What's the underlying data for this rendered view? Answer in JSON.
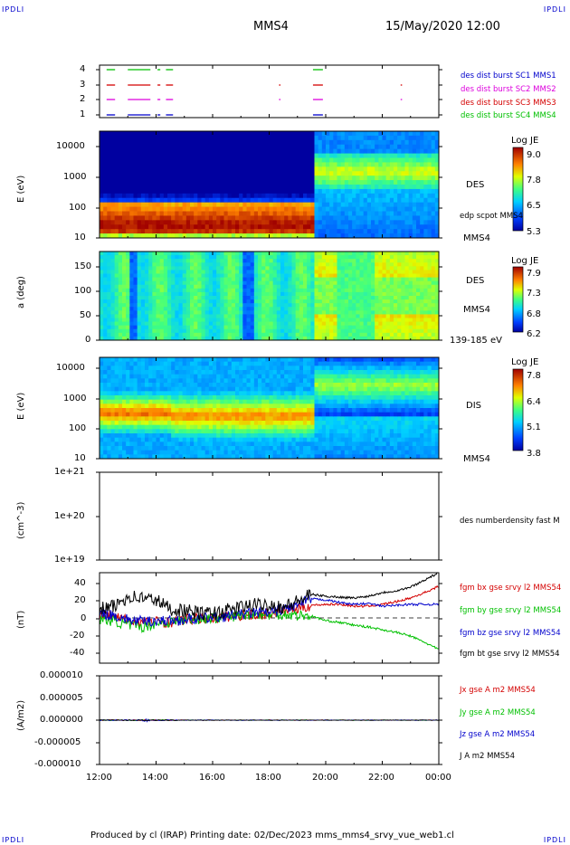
{
  "corner_labels": {
    "tl": "IPDLI",
    "tr": "IPDLI",
    "bl": "IPDLI",
    "br": "IPDLI"
  },
  "header": {
    "spacecraft": "MMS4",
    "datetime": "15/May/2020 12:00"
  },
  "footer": {
    "text": "Produced by cl (IRAP)   Printing date: 02/Dec/2023   mms_mms4_srvy_vue_web1.cl"
  },
  "colors": {
    "red": "#d40000",
    "green": "#00c000",
    "blue": "#0000cc",
    "magenta": "#dd00dd",
    "black": "#000000"
  },
  "chart_data": [
    {
      "type": "scatter",
      "panel": "burst",
      "yticks": [
        "4",
        "3",
        "2",
        "1"
      ],
      "x_range": [
        "12:00",
        "00:00"
      ],
      "series": [
        {
          "name": "des dist burst SC1 MMS1",
          "y": 1,
          "color": "#0000cc",
          "segments": [
            [
              12.25,
              12.55
            ],
            [
              13.0,
              13.8
            ],
            [
              14.05,
              14.15
            ],
            [
              14.35,
              14.6
            ],
            [
              19.55,
              19.9
            ]
          ]
        },
        {
          "name": "des dist burst SC2 MMS2",
          "y": 2,
          "color": "#dd00dd",
          "segments": [
            [
              12.25,
              12.55
            ],
            [
              13.0,
              13.8
            ],
            [
              14.05,
              14.15
            ],
            [
              14.35,
              14.6
            ],
            [
              18.35,
              18.4
            ],
            [
              19.55,
              19.9
            ],
            [
              22.65,
              22.7
            ]
          ]
        },
        {
          "name": "des dist burst SC3 MMS3",
          "y": 3,
          "color": "#d40000",
          "segments": [
            [
              12.25,
              12.55
            ],
            [
              13.0,
              13.8
            ],
            [
              14.05,
              14.15
            ],
            [
              14.35,
              14.6
            ],
            [
              18.35,
              18.4
            ],
            [
              19.55,
              19.9
            ],
            [
              22.65,
              22.7
            ]
          ]
        },
        {
          "name": "des dist burst SC4 MMS4",
          "y": 4,
          "color": "#00c000",
          "segments": [
            [
              12.25,
              12.55
            ],
            [
              13.0,
              13.8
            ],
            [
              14.05,
              14.15
            ],
            [
              14.35,
              14.6
            ],
            [
              19.55,
              19.9
            ]
          ]
        }
      ]
    },
    {
      "type": "heatmap",
      "panel": "des_energy",
      "ylabel": "E (eV)",
      "yscale": "log",
      "ytick_labels": [
        "10000",
        "1000",
        "100",
        "10"
      ],
      "ylim": [
        10,
        30000
      ],
      "colorbar": {
        "title": "Log JE",
        "ticks": [
          "9.0",
          "7.8",
          "6.5",
          "5.3"
        ],
        "range": [
          5.3,
          9.0
        ]
      },
      "side_label": "DES",
      "overlay_label": "edp scpot MMS4",
      "spacecraft": "MMS4"
    },
    {
      "type": "heatmap",
      "panel": "des_pitch",
      "ylabel": "a (deg)",
      "ytick_labels": [
        "150",
        "100",
        "50",
        "0"
      ],
      "ylim": [
        0,
        180
      ],
      "colorbar": {
        "title": "Log JE",
        "ticks": [
          "7.9",
          "7.3",
          "6.8",
          "6.2"
        ],
        "range": [
          6.2,
          7.9
        ]
      },
      "side_label": "DES",
      "spacecraft": "MMS4",
      "energy_range": "139-185 eV"
    },
    {
      "type": "heatmap",
      "panel": "dis_energy",
      "ylabel": "E (eV)",
      "yscale": "log",
      "ytick_labels": [
        "10000",
        "1000",
        "100",
        "10"
      ],
      "ylim": [
        10,
        30000
      ],
      "colorbar": {
        "title": "Log JE",
        "ticks": [
          "7.8",
          "6.4",
          "5.1",
          "3.8"
        ],
        "range": [
          3.8,
          7.8
        ]
      },
      "side_label": "DIS",
      "spacecraft": "MMS4"
    },
    {
      "type": "line",
      "panel": "density",
      "ylabel": "(cm^-3)",
      "yscale": "log",
      "ytick_labels": [
        "1e+21",
        "1e+20",
        "1e+19"
      ],
      "series": [
        {
          "name": "des numberdensity fast M",
          "values": []
        }
      ]
    },
    {
      "type": "line",
      "panel": "magnetic_field",
      "ylabel": "(nT)",
      "ytick_labels": [
        "40",
        "20",
        "0",
        "-20",
        "-40"
      ],
      "ylim": [
        -50,
        50
      ],
      "x": [
        12,
        12.5,
        13,
        13.5,
        14,
        14.5,
        15,
        15.5,
        16,
        16.5,
        17,
        17.5,
        18,
        18.5,
        19,
        19.5,
        20,
        20.5,
        21,
        21.5,
        22,
        22.5,
        23,
        23.5,
        24
      ],
      "series": [
        {
          "name": "fgm bx gse srvy l2 MMS54",
          "color": "#d40000",
          "values": [
            3,
            2,
            -3,
            -5,
            -4,
            -5,
            -2,
            -1,
            0,
            1,
            3,
            3,
            5,
            8,
            10,
            14,
            15,
            15,
            13,
            13,
            15,
            18,
            22,
            28,
            35
          ]
        },
        {
          "name": "fgm by gse srvy l2 MMS54",
          "color": "#00c000",
          "values": [
            -2,
            -3,
            -8,
            -10,
            -6,
            -5,
            -2,
            -1,
            0,
            1,
            3,
            5,
            3,
            4,
            3,
            2,
            -3,
            -5,
            -8,
            -10,
            -13,
            -16,
            -20,
            -27,
            -35
          ]
        },
        {
          "name": "fgm bz gse srvy l2 MMS54",
          "color": "#0000cc",
          "values": [
            5,
            3,
            -2,
            -4,
            -3,
            -3,
            -2,
            -1,
            0,
            2,
            4,
            6,
            5,
            10,
            14,
            21,
            20,
            17,
            15,
            16,
            13,
            14,
            15,
            15,
            15
          ]
        },
        {
          "name": "fgm bt gse srvy l2 MMS54",
          "color": "#000000",
          "values": [
            10,
            12,
            24,
            22,
            20,
            10,
            8,
            5,
            5,
            8,
            12,
            14,
            15,
            12,
            18,
            26,
            24,
            23,
            22,
            24,
            28,
            30,
            34,
            42,
            50
          ]
        }
      ]
    },
    {
      "type": "line",
      "panel": "current",
      "ylabel": "(A/m2)",
      "ytick_labels": [
        "0.000010",
        "0.000005",
        "0.000000",
        "-0.000005",
        "-0.000010"
      ],
      "ylim": [
        -1e-05,
        1e-05
      ],
      "xtick_labels": [
        "12:00",
        "14:00",
        "16:00",
        "18:00",
        "20:00",
        "22:00",
        "00:00"
      ],
      "series": [
        {
          "name": "Jx gse A m2 MMS54",
          "color": "#d40000"
        },
        {
          "name": "Jy gse A m2 MMS54",
          "color": "#00c000"
        },
        {
          "name": "Jz gse A m2 MMS54",
          "color": "#0000cc"
        },
        {
          "name": "J A m2 MMS54",
          "color": "#000000"
        }
      ]
    }
  ]
}
